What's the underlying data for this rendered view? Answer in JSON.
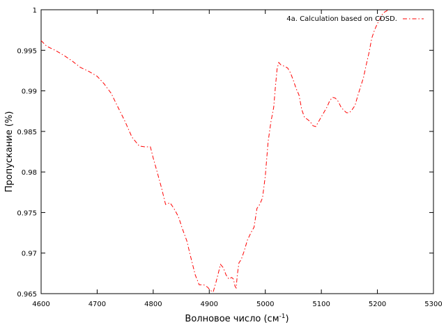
{
  "chart_data": {
    "type": "line",
    "xlabel_main": "Волновое число (см",
    "xlabel_sup": "-1",
    "xlabel_end": ")",
    "ylabel": "Пропускание (%)",
    "xlim": [
      4600,
      5300
    ],
    "ylim": [
      0.965,
      1.0
    ],
    "xticks": [
      4600,
      4700,
      4800,
      4900,
      5000,
      5100,
      5200,
      5300
    ],
    "yticks": [
      0.965,
      0.97,
      0.975,
      0.98,
      0.985,
      0.99,
      0.995,
      1
    ],
    "ytick_labels": [
      "0.965",
      "0.97",
      "0.975",
      "0.98",
      "0.985",
      "0.99",
      "0.995",
      "1"
    ],
    "grid": false,
    "legend_position": "top-right",
    "series": [
      {
        "name": "4a. Calculation based on CDSD.",
        "color": "#ff0000",
        "line_style": "dash-dot",
        "x": [
          4600,
          4610,
          4625,
          4640,
          4655,
          4670,
          4685,
          4700,
          4712,
          4725,
          4737,
          4750,
          4762,
          4775,
          4785,
          4795,
          4800,
          4807,
          4815,
          4822,
          4830,
          4837,
          4845,
          4852,
          4860,
          4867,
          4875,
          4882,
          4890,
          4897,
          4902,
          4907,
          4912,
          4916,
          4920,
          4925,
          4930,
          4935,
          4940,
          4943,
          4946,
          4948,
          4950,
          4953,
          4957,
          4962,
          4968,
          4975,
          4980,
          4985,
          4990,
          4995,
          5000,
          5005,
          5010,
          5015,
          5018,
          5021,
          5024,
          5028,
          5035,
          5040,
          5045,
          5050,
          5055,
          5060,
          5065,
          5070,
          5075,
          5080,
          5085,
          5090,
          5095,
          5100,
          5110,
          5115,
          5120,
          5125,
          5130,
          5135,
          5140,
          5145,
          5150,
          5155,
          5160,
          5165,
          5170,
          5175,
          5180,
          5185,
          5190,
          5195,
          5200,
          5210,
          5220
        ],
        "y": [
          0.9962,
          0.9955,
          0.995,
          0.9944,
          0.9937,
          0.9929,
          0.9924,
          0.9918,
          0.9909,
          0.9897,
          0.988,
          0.9862,
          0.9843,
          0.9832,
          0.9831,
          0.9831,
          0.9817,
          0.98,
          0.978,
          0.976,
          0.9762,
          0.9755,
          0.9745,
          0.973,
          0.9715,
          0.9695,
          0.9673,
          0.9661,
          0.9661,
          0.9658,
          0.9654,
          0.9652,
          0.9664,
          0.9675,
          0.9686,
          0.9682,
          0.9673,
          0.9668,
          0.967,
          0.9668,
          0.9659,
          0.9657,
          0.9673,
          0.9688,
          0.9692,
          0.9702,
          0.9716,
          0.9726,
          0.9732,
          0.9755,
          0.976,
          0.9768,
          0.9795,
          0.9837,
          0.9862,
          0.988,
          0.9905,
          0.9927,
          0.9935,
          0.9932,
          0.993,
          0.9928,
          0.9922,
          0.9913,
          0.9903,
          0.9895,
          0.9877,
          0.9867,
          0.9865,
          0.9862,
          0.9857,
          0.9856,
          0.9862,
          0.9868,
          0.988,
          0.9888,
          0.9892,
          0.9891,
          0.9887,
          0.988,
          0.9876,
          0.9873,
          0.9873,
          0.9877,
          0.9882,
          0.9894,
          0.9905,
          0.9916,
          0.9932,
          0.9947,
          0.9965,
          0.9975,
          0.9983,
          0.9996,
          1.0008
        ]
      }
    ]
  }
}
